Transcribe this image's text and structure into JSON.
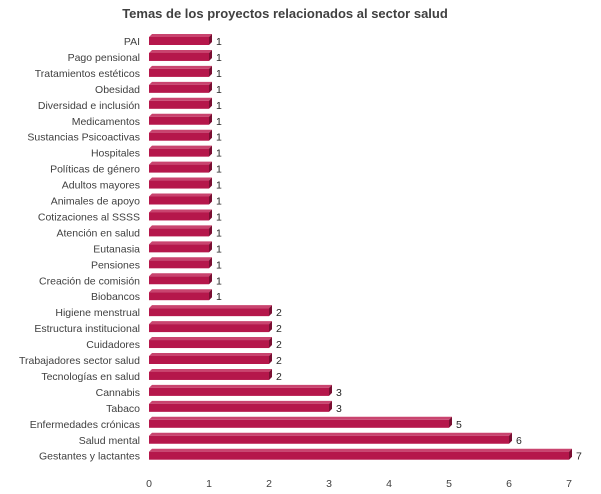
{
  "chart_data": {
    "type": "bar",
    "orientation": "horizontal",
    "title": "Temas de los proyectos relacionados al sector salud",
    "categories": [
      "PAI",
      "Pago pensional",
      "Tratamientos estéticos",
      "Obesidad",
      "Diversidad e inclusión",
      "Medicamentos",
      "Sustancias Psicoactivas",
      "Hospitales",
      "Políticas de género",
      "Adultos mayores",
      "Animales de apoyo",
      "Cotizaciones al SSSS",
      "Atención en salud",
      "Eutanasia",
      "Pensiones",
      "Creación de comisión",
      "Biobancos",
      "Higiene menstrual",
      "Estructura institucional",
      "Cuidadores",
      "Trabajadores sector salud",
      "Tecnologías en salud",
      "Cannabis",
      "Tabaco",
      "Enfermedades crónicas",
      "Salud mental",
      "Gestantes y lactantes"
    ],
    "values": [
      1,
      1,
      1,
      1,
      1,
      1,
      1,
      1,
      1,
      1,
      1,
      1,
      1,
      1,
      1,
      1,
      1,
      2,
      2,
      2,
      2,
      2,
      3,
      3,
      5,
      6,
      7
    ],
    "xlim": [
      0,
      7
    ],
    "xticks": [
      "0",
      "1",
      "2",
      "3",
      "4",
      "5",
      "6",
      "7"
    ],
    "bar_color": "#B5174B",
    "bar_shadow_color": "#7A0E32",
    "grid": false,
    "legend": "none"
  }
}
